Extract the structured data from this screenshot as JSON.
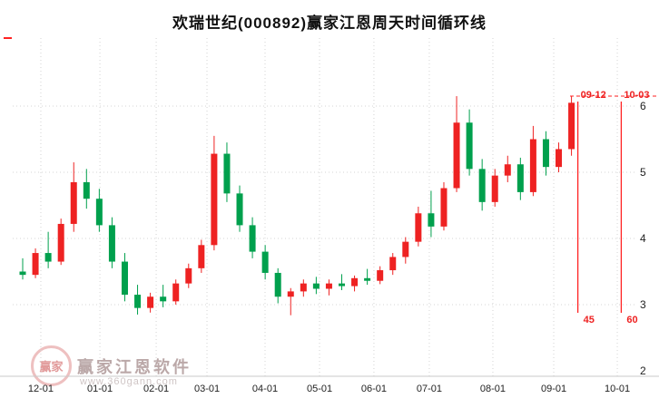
{
  "title": "欢瑞世纪(000892)赢家江恩周天时间循环线",
  "watermark": {
    "brand": "赢家江恩软件",
    "url": "www.360gann.com",
    "logo_text": "赢家"
  },
  "colors": {
    "up": "#ee2222",
    "down": "#00a04d",
    "gann": "#ff2222",
    "grid": "#d4d4d4",
    "axis": "#c8c8c8",
    "text": "#222222"
  },
  "chart_data": {
    "type": "candlestick",
    "title": "欢瑞世纪(000892)赢家江恩周天时间循环线",
    "ylim": [
      2,
      6.6
    ],
    "yticks": [
      2,
      3,
      4,
      5,
      6
    ],
    "grid": true,
    "candle_format": [
      "open",
      "high",
      "low",
      "close"
    ],
    "xticks": [
      {
        "label": "12-01",
        "index": 1.42
      },
      {
        "label": "01-01",
        "index": 6.05
      },
      {
        "label": "02-01",
        "index": 10.46
      },
      {
        "label": "03-01",
        "index": 14.44
      },
      {
        "label": "04-01",
        "index": 18.99
      },
      {
        "label": "05-01",
        "index": 23.26
      },
      {
        "label": "06-01",
        "index": 27.52
      },
      {
        "label": "07-01",
        "index": 31.86
      },
      {
        "label": "08-01",
        "index": 36.84
      },
      {
        "label": "09-01",
        "index": 41.61
      },
      {
        "label": "10-01",
        "index": 46.59
      }
    ],
    "candles": [
      [
        3.5,
        3.7,
        3.38,
        3.45
      ],
      [
        3.45,
        3.85,
        3.4,
        3.78
      ],
      [
        3.78,
        4.1,
        3.55,
        3.65
      ],
      [
        3.65,
        4.3,
        3.6,
        4.22
      ],
      [
        4.22,
        5.15,
        4.1,
        4.85
      ],
      [
        4.85,
        5.05,
        4.45,
        4.6
      ],
      [
        4.6,
        4.75,
        4.1,
        4.2
      ],
      [
        4.2,
        4.32,
        3.55,
        3.65
      ],
      [
        3.65,
        3.78,
        3.05,
        3.15
      ],
      [
        3.15,
        3.3,
        2.85,
        2.95
      ],
      [
        2.95,
        3.18,
        2.88,
        3.12
      ],
      [
        3.12,
        3.3,
        2.96,
        3.05
      ],
      [
        3.05,
        3.38,
        3.0,
        3.32
      ],
      [
        3.32,
        3.62,
        3.25,
        3.55
      ],
      [
        3.55,
        3.98,
        3.48,
        3.9
      ],
      [
        3.9,
        5.55,
        3.82,
        5.28
      ],
      [
        5.28,
        5.45,
        4.55,
        4.68
      ],
      [
        4.68,
        4.8,
        4.1,
        4.2
      ],
      [
        4.2,
        4.32,
        3.7,
        3.8
      ],
      [
        3.8,
        3.9,
        3.38,
        3.48
      ],
      [
        3.48,
        3.55,
        3.02,
        3.12
      ],
      [
        3.12,
        3.25,
        2.84,
        3.2
      ],
      [
        3.2,
        3.38,
        3.12,
        3.32
      ],
      [
        3.32,
        3.42,
        3.16,
        3.24
      ],
      [
        3.24,
        3.38,
        3.14,
        3.32
      ],
      [
        3.32,
        3.46,
        3.22,
        3.28
      ],
      [
        3.28,
        3.44,
        3.2,
        3.4
      ],
      [
        3.4,
        3.54,
        3.3,
        3.36
      ],
      [
        3.36,
        3.58,
        3.31,
        3.52
      ],
      [
        3.52,
        3.78,
        3.45,
        3.72
      ],
      [
        3.72,
        4.02,
        3.62,
        3.95
      ],
      [
        3.95,
        4.48,
        3.88,
        4.38
      ],
      [
        4.38,
        4.72,
        4.02,
        4.18
      ],
      [
        4.18,
        4.85,
        4.12,
        4.76
      ],
      [
        4.76,
        6.15,
        4.7,
        5.75
      ],
      [
        5.75,
        5.95,
        4.95,
        5.05
      ],
      [
        5.05,
        5.2,
        4.42,
        4.55
      ],
      [
        4.55,
        5.05,
        4.48,
        4.95
      ],
      [
        4.95,
        5.25,
        4.85,
        5.12
      ],
      [
        5.12,
        5.22,
        4.58,
        4.7
      ],
      [
        4.7,
        5.7,
        4.64,
        5.5
      ],
      [
        5.5,
        5.62,
        4.95,
        5.08
      ],
      [
        5.08,
        5.45,
        5.0,
        5.35
      ],
      [
        5.35,
        6.15,
        5.25,
        6.05
      ]
    ],
    "gann_lines": [
      {
        "top_label": "09-12",
        "bottom_label": "45",
        "index": 43.5
      },
      {
        "top_label": "10-03",
        "bottom_label": "60",
        "index": 46.9
      }
    ],
    "high_line_price": 6.15
  }
}
